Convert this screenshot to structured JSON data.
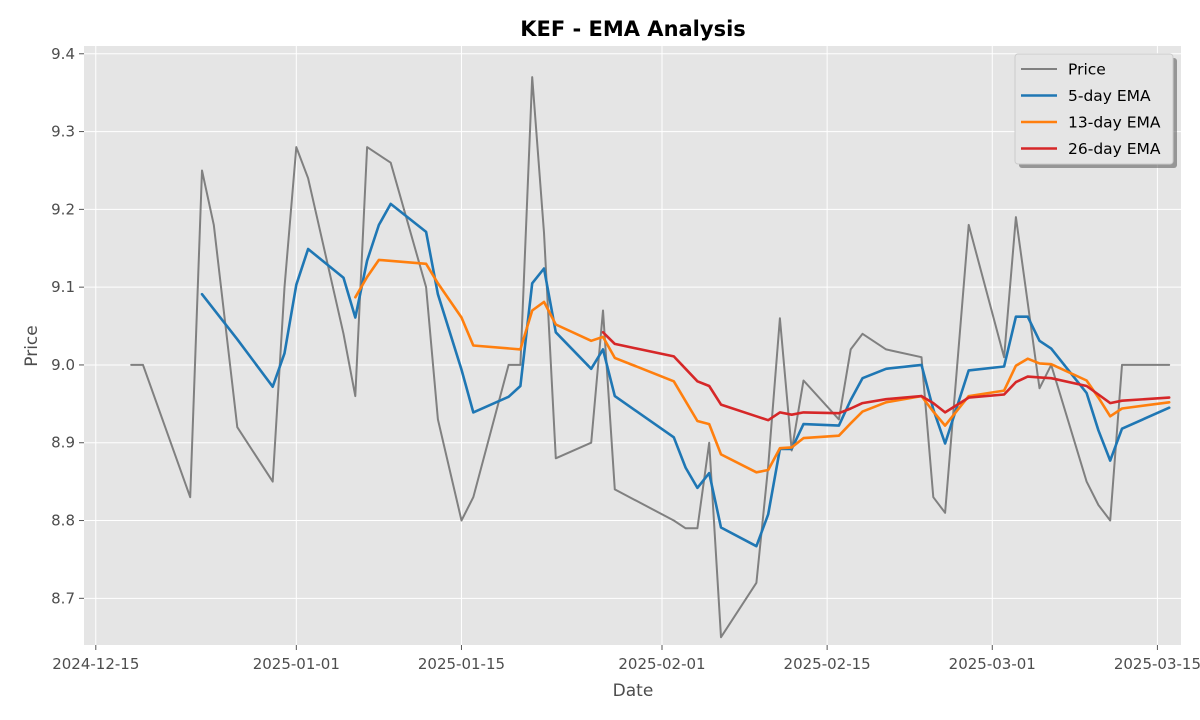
{
  "chart_data": {
    "type": "line",
    "title": "KEF - EMA Analysis",
    "xlabel": "Date",
    "ylabel": "Price",
    "xlim": [
      "2024-12-14",
      "2025-03-17"
    ],
    "ylim": [
      8.64,
      9.41
    ],
    "grid": true,
    "legend_position": "upper right",
    "x_ticks": [
      "2024-12-15",
      "2025-01-01",
      "2025-01-15",
      "2025-02-01",
      "2025-02-15",
      "2025-03-01",
      "2025-03-15"
    ],
    "y_ticks": [
      8.7,
      8.8,
      8.9,
      9.0,
      9.1,
      9.2,
      9.3,
      9.4
    ],
    "series": [
      {
        "name": "Price",
        "color": "#808080",
        "points": [
          [
            "2024-12-18",
            9.0
          ],
          [
            "2024-12-19",
            9.0
          ],
          [
            "2024-12-23",
            8.83
          ],
          [
            "2024-12-24",
            9.25
          ],
          [
            "2024-12-25",
            9.18
          ],
          [
            "2024-12-27",
            8.92
          ],
          [
            "2024-12-30",
            8.85
          ],
          [
            "2024-12-31",
            9.1
          ],
          [
            "2025-01-01",
            9.28
          ],
          [
            "2025-01-02",
            9.24
          ],
          [
            "2025-01-05",
            9.04
          ],
          [
            "2025-01-06",
            8.96
          ],
          [
            "2025-01-07",
            9.28
          ],
          [
            "2025-01-09",
            9.26
          ],
          [
            "2025-01-12",
            9.1
          ],
          [
            "2025-01-13",
            8.93
          ],
          [
            "2025-01-15",
            8.8
          ],
          [
            "2025-01-16",
            8.83
          ],
          [
            "2025-01-19",
            9.0
          ],
          [
            "2025-01-20",
            9.0
          ],
          [
            "2025-01-21",
            9.37
          ],
          [
            "2025-01-22",
            9.17
          ],
          [
            "2025-01-23",
            8.88
          ],
          [
            "2025-01-26",
            8.9
          ],
          [
            "2025-01-27",
            9.07
          ],
          [
            "2025-01-28",
            8.84
          ],
          [
            "2025-02-02",
            8.8
          ],
          [
            "2025-02-03",
            8.79
          ],
          [
            "2025-02-04",
            8.79
          ],
          [
            "2025-02-05",
            8.9
          ],
          [
            "2025-02-06",
            8.65
          ],
          [
            "2025-02-09",
            8.72
          ],
          [
            "2025-02-10",
            8.87
          ],
          [
            "2025-02-11",
            9.06
          ],
          [
            "2025-02-12",
            8.89
          ],
          [
            "2025-02-13",
            8.98
          ],
          [
            "2025-02-16",
            8.93
          ],
          [
            "2025-02-17",
            9.02
          ],
          [
            "2025-02-18",
            9.04
          ],
          [
            "2025-02-20",
            9.02
          ],
          [
            "2025-02-23",
            9.01
          ],
          [
            "2025-02-24",
            8.83
          ],
          [
            "2025-02-25",
            8.81
          ],
          [
            "2025-02-27",
            9.18
          ],
          [
            "2025-03-02",
            9.01
          ],
          [
            "2025-03-03",
            9.19
          ],
          [
            "2025-03-05",
            8.97
          ],
          [
            "2025-03-06",
            9.0
          ],
          [
            "2025-03-09",
            8.85
          ],
          [
            "2025-03-10",
            8.82
          ],
          [
            "2025-03-11",
            8.8
          ],
          [
            "2025-03-12",
            9.0
          ],
          [
            "2025-03-16",
            9.0
          ]
        ]
      },
      {
        "name": "5-day EMA",
        "color": "#1f77b4",
        "points": [
          [
            "2024-12-24",
            9.091
          ],
          [
            "2024-12-27",
            9.033
          ],
          [
            "2024-12-30",
            8.972
          ],
          [
            "2024-12-31",
            9.015
          ],
          [
            "2025-01-01",
            9.103
          ],
          [
            "2025-01-02",
            9.149
          ],
          [
            "2025-01-05",
            9.112
          ],
          [
            "2025-01-06",
            9.061
          ],
          [
            "2025-01-07",
            9.134
          ],
          [
            "2025-01-08",
            9.18
          ],
          [
            "2025-01-09",
            9.207
          ],
          [
            "2025-01-12",
            9.171
          ],
          [
            "2025-01-13",
            9.091
          ],
          [
            "2025-01-15",
            8.994
          ],
          [
            "2025-01-16",
            8.939
          ],
          [
            "2025-01-19",
            8.959
          ],
          [
            "2025-01-20",
            8.973
          ],
          [
            "2025-01-21",
            9.105
          ],
          [
            "2025-01-22",
            9.124
          ],
          [
            "2025-01-23",
            9.042
          ],
          [
            "2025-01-26",
            8.995
          ],
          [
            "2025-01-27",
            9.02
          ],
          [
            "2025-01-28",
            8.96
          ],
          [
            "2025-02-02",
            8.907
          ],
          [
            "2025-02-03",
            8.868
          ],
          [
            "2025-02-04",
            8.842
          ],
          [
            "2025-02-05",
            8.861
          ],
          [
            "2025-02-06",
            8.791
          ],
          [
            "2025-02-09",
            8.767
          ],
          [
            "2025-02-10",
            8.808
          ],
          [
            "2025-02-11",
            8.892
          ],
          [
            "2025-02-12",
            8.892
          ],
          [
            "2025-02-13",
            8.924
          ],
          [
            "2025-02-16",
            8.922
          ],
          [
            "2025-02-17",
            8.955
          ],
          [
            "2025-02-18",
            8.983
          ],
          [
            "2025-02-20",
            8.995
          ],
          [
            "2025-02-23",
            9.0
          ],
          [
            "2025-02-24",
            8.943
          ],
          [
            "2025-02-25",
            8.899
          ],
          [
            "2025-02-27",
            8.993
          ],
          [
            "2025-03-02",
            8.998
          ],
          [
            "2025-03-03",
            9.062
          ],
          [
            "2025-03-04",
            9.062
          ],
          [
            "2025-03-05",
            9.031
          ],
          [
            "2025-03-06",
            9.021
          ],
          [
            "2025-03-09",
            8.964
          ],
          [
            "2025-03-10",
            8.916
          ],
          [
            "2025-03-11",
            8.877
          ],
          [
            "2025-03-12",
            8.918
          ],
          [
            "2025-03-16",
            8.945
          ]
        ]
      },
      {
        "name": "13-day EMA",
        "color": "#ff7f0e",
        "points": [
          [
            "2025-01-06",
            9.087
          ],
          [
            "2025-01-07",
            9.113
          ],
          [
            "2025-01-08",
            9.135
          ],
          [
            "2025-01-12",
            9.13
          ],
          [
            "2025-01-13",
            9.105
          ],
          [
            "2025-01-15",
            9.061
          ],
          [
            "2025-01-16",
            9.025
          ],
          [
            "2025-01-20",
            9.02
          ],
          [
            "2025-01-21",
            9.07
          ],
          [
            "2025-01-22",
            9.081
          ],
          [
            "2025-01-23",
            9.052
          ],
          [
            "2025-01-26",
            9.031
          ],
          [
            "2025-01-27",
            9.036
          ],
          [
            "2025-01-28",
            9.009
          ],
          [
            "2025-02-02",
            8.979
          ],
          [
            "2025-02-04",
            8.928
          ],
          [
            "2025-02-05",
            8.924
          ],
          [
            "2025-02-06",
            8.885
          ],
          [
            "2025-02-09",
            8.862
          ],
          [
            "2025-02-10",
            8.865
          ],
          [
            "2025-02-11",
            8.893
          ],
          [
            "2025-02-12",
            8.894
          ],
          [
            "2025-02-13",
            8.906
          ],
          [
            "2025-02-16",
            8.909
          ],
          [
            "2025-02-17",
            8.925
          ],
          [
            "2025-02-18",
            8.94
          ],
          [
            "2025-02-20",
            8.952
          ],
          [
            "2025-02-23",
            8.96
          ],
          [
            "2025-02-24",
            8.94
          ],
          [
            "2025-02-25",
            8.922
          ],
          [
            "2025-02-27",
            8.96
          ],
          [
            "2025-03-02",
            8.967
          ],
          [
            "2025-03-03",
            8.999
          ],
          [
            "2025-03-04",
            9.008
          ],
          [
            "2025-03-05",
            9.002
          ],
          [
            "2025-03-06",
            9.001
          ],
          [
            "2025-03-09",
            8.98
          ],
          [
            "2025-03-10",
            8.958
          ],
          [
            "2025-03-11",
            8.934
          ],
          [
            "2025-03-12",
            8.944
          ],
          [
            "2025-03-16",
            8.952
          ]
        ]
      },
      {
        "name": "26-day EMA",
        "color": "#d62728",
        "points": [
          [
            "2025-01-27",
            9.042
          ],
          [
            "2025-01-28",
            9.027
          ],
          [
            "2025-02-02",
            9.011
          ],
          [
            "2025-02-03",
            8.995
          ],
          [
            "2025-02-04",
            8.979
          ],
          [
            "2025-02-05",
            8.973
          ],
          [
            "2025-02-06",
            8.949
          ],
          [
            "2025-02-09",
            8.934
          ],
          [
            "2025-02-10",
            8.929
          ],
          [
            "2025-02-11",
            8.939
          ],
          [
            "2025-02-12",
            8.936
          ],
          [
            "2025-02-13",
            8.939
          ],
          [
            "2025-02-16",
            8.938
          ],
          [
            "2025-02-17",
            8.944
          ],
          [
            "2025-02-18",
            8.951
          ],
          [
            "2025-02-20",
            8.956
          ],
          [
            "2025-02-23",
            8.96
          ],
          [
            "2025-02-24",
            8.951
          ],
          [
            "2025-02-25",
            8.939
          ],
          [
            "2025-02-27",
            8.958
          ],
          [
            "2025-03-02",
            8.962
          ],
          [
            "2025-03-03",
            8.978
          ],
          [
            "2025-03-04",
            8.985
          ],
          [
            "2025-03-05",
            8.984
          ],
          [
            "2025-03-06",
            8.983
          ],
          [
            "2025-03-09",
            8.973
          ],
          [
            "2025-03-10",
            8.962
          ],
          [
            "2025-03-11",
            8.951
          ],
          [
            "2025-03-12",
            8.954
          ],
          [
            "2025-03-16",
            8.958
          ]
        ]
      }
    ]
  }
}
